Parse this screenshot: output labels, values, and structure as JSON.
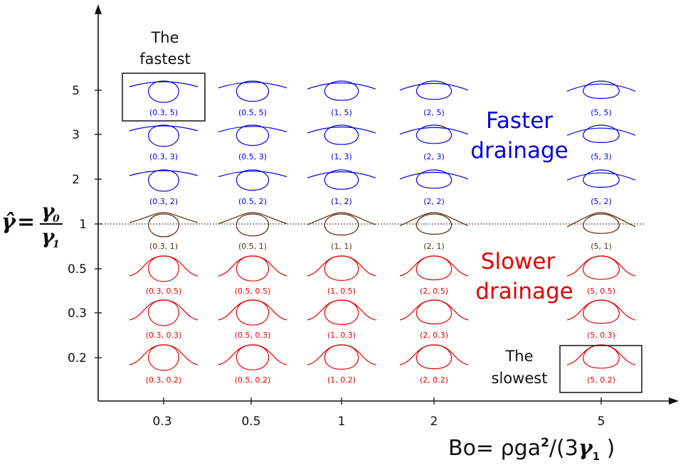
{
  "x_ticks": [
    "0.3",
    "0.5",
    "1",
    "2",
    "5"
  ],
  "y_ticks": [
    "5",
    "3",
    "2",
    "1",
    "0.5",
    "0.3",
    "0.2"
  ],
  "x_axis_label": "Bo= ρga²/(3γ₁ )",
  "y_axis_label": "γ̂ = γ₀ / γ₁",
  "y_axis_symbols": {
    "hat": "γ̂",
    "eq": "=",
    "num": "γ",
    "num_sub": "0",
    "den": "γ",
    "den_sub": "1"
  },
  "x_axis_parts": {
    "prefix": "Bo= ρga",
    "sup": "2",
    "mid": "/(3",
    "gamma": "γ",
    "sub": "1",
    "suffix": " )"
  },
  "regions": {
    "faster": [
      "Faster",
      "drainage"
    ],
    "slower": [
      "Slower",
      "drainage"
    ]
  },
  "annotations": {
    "fastest": [
      "The",
      "fastest"
    ],
    "slowest": [
      "The",
      "slowest"
    ]
  },
  "reference_line_value": 1,
  "colors": {
    "faster": "#0000e6",
    "neutral": "#5a2a0a",
    "slower": "#e60000",
    "reference_line": "#777777"
  },
  "shapes": [
    {
      "label": "(0.3, 5)",
      "bo": 0.3,
      "gamma": 5
    },
    {
      "label": "(0.5, 5)",
      "bo": 0.5,
      "gamma": 5
    },
    {
      "label": "(1, 5)",
      "bo": 1,
      "gamma": 5
    },
    {
      "label": "(2, 5)",
      "bo": 2,
      "gamma": 5
    },
    {
      "label": "(5, 5)",
      "bo": 5,
      "gamma": 5
    },
    {
      "label": "(0.3, 3)",
      "bo": 0.3,
      "gamma": 3
    },
    {
      "label": "(0.5, 3)",
      "bo": 0.5,
      "gamma": 3
    },
    {
      "label": "(1, 3)",
      "bo": 1,
      "gamma": 3
    },
    {
      "label": "(2, 3)",
      "bo": 2,
      "gamma": 3
    },
    {
      "label": "(5, 3)",
      "bo": 5,
      "gamma": 3
    },
    {
      "label": "(0.3, 2)",
      "bo": 0.3,
      "gamma": 2
    },
    {
      "label": "(0.5, 2)",
      "bo": 0.5,
      "gamma": 2
    },
    {
      "label": "(1, 2)",
      "bo": 1,
      "gamma": 2
    },
    {
      "label": "(2, 2)",
      "bo": 2,
      "gamma": 2
    },
    {
      "label": "(5, 2)",
      "bo": 5,
      "gamma": 2
    },
    {
      "label": "(0.3, 1)",
      "bo": 0.3,
      "gamma": 1
    },
    {
      "label": "(0.5, 1)",
      "bo": 0.5,
      "gamma": 1
    },
    {
      "label": "(1, 1)",
      "bo": 1,
      "gamma": 1
    },
    {
      "label": "(2, 1)",
      "bo": 2,
      "gamma": 1
    },
    {
      "label": "(5, 1)",
      "bo": 5,
      "gamma": 1
    },
    {
      "label": "(0.3, 0.5)",
      "bo": 0.3,
      "gamma": 0.5
    },
    {
      "label": "(0.5, 0.5)",
      "bo": 0.5,
      "gamma": 0.5
    },
    {
      "label": "(1, 0.5)",
      "bo": 1,
      "gamma": 0.5
    },
    {
      "label": "(2, 0.5)",
      "bo": 2,
      "gamma": 0.5
    },
    {
      "label": "(5, 0.5)",
      "bo": 5,
      "gamma": 0.5
    },
    {
      "label": "(0.3, 0.3)",
      "bo": 0.3,
      "gamma": 0.3
    },
    {
      "label": "(0.5, 0.3)",
      "bo": 0.5,
      "gamma": 0.3
    },
    {
      "label": "(1, 0.3)",
      "bo": 1,
      "gamma": 0.3
    },
    {
      "label": "(2, 0.3)",
      "bo": 2,
      "gamma": 0.3
    },
    {
      "label": "(5, 0.3)",
      "bo": 5,
      "gamma": 0.3
    },
    {
      "label": "(0.3, 0.2)",
      "bo": 0.3,
      "gamma": 0.2
    },
    {
      "label": "(0.5, 0.2)",
      "bo": 0.5,
      "gamma": 0.2
    },
    {
      "label": "(1, 0.2)",
      "bo": 1,
      "gamma": 0.2
    },
    {
      "label": "(2, 0.2)",
      "bo": 2,
      "gamma": 0.2
    },
    {
      "label": "(5, 0.2)",
      "bo": 5,
      "gamma": 0.2
    }
  ]
}
